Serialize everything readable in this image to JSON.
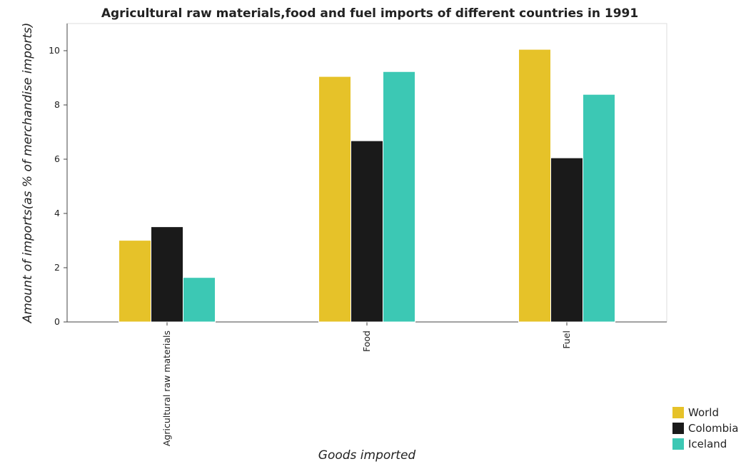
{
  "chart_data": {
    "type": "bar",
    "title": "Agricultural raw materials,food and fuel imports of different countries in 1991",
    "xlabel": "Goods imported",
    "ylabel": "Amount of imports(as % of merchandise imports)",
    "categories": [
      "Agricultural raw materials",
      "Food",
      "Fuel"
    ],
    "series": [
      {
        "name": "World",
        "color": "#e6c229",
        "values": [
          3.01,
          9.05,
          10.05
        ]
      },
      {
        "name": "Colombia",
        "color": "#1a1a1a",
        "values": [
          3.51,
          6.68,
          6.05
        ]
      },
      {
        "name": "Iceland",
        "color": "#3cc8b4",
        "values": [
          1.64,
          9.23,
          8.39
        ]
      }
    ],
    "ylim": [
      0,
      11
    ],
    "yticks": [
      0,
      2,
      4,
      6,
      8,
      10
    ],
    "grid": false,
    "legend_position": "bottom-right"
  }
}
